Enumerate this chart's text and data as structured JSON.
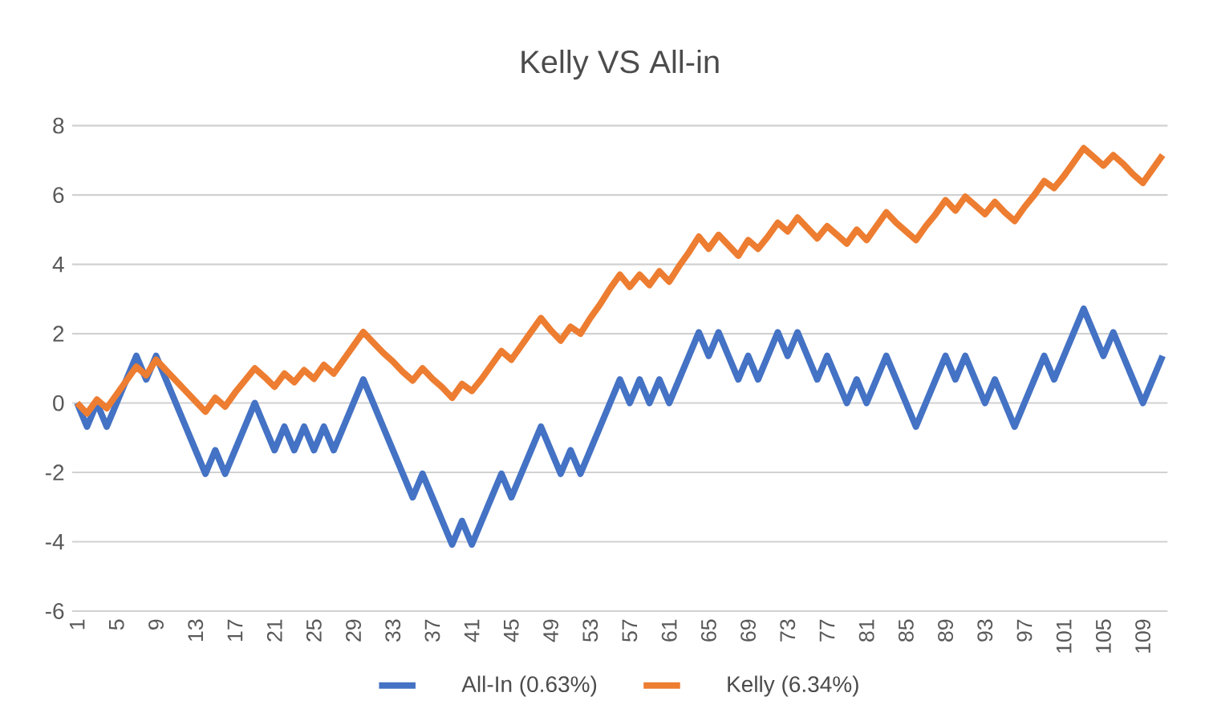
{
  "chart_data": {
    "type": "line",
    "title": "Kelly VS All-in",
    "categories": [
      "1",
      null,
      null,
      null,
      "5",
      null,
      null,
      null,
      "9",
      null,
      null,
      null,
      "13",
      null,
      null,
      null,
      "17",
      null,
      null,
      null,
      "21",
      null,
      null,
      null,
      "25",
      null,
      null,
      null,
      "29",
      null,
      null,
      null,
      "33",
      null,
      null,
      null,
      "37",
      null,
      null,
      null,
      "41",
      null,
      null,
      null,
      "45",
      null,
      null,
      null,
      "49",
      null,
      null,
      null,
      "53",
      null,
      null,
      null,
      "57",
      null,
      null,
      null,
      "61",
      null,
      null,
      null,
      "65",
      null,
      null,
      null,
      "69",
      null,
      null,
      null,
      "73",
      null,
      null,
      null,
      "77",
      null,
      null,
      null,
      "81",
      null,
      null,
      null,
      "85",
      null,
      null,
      null,
      "89",
      null,
      null,
      null,
      "93",
      null,
      null,
      null,
      "97",
      null,
      null,
      null,
      "101",
      null,
      null,
      null,
      "105",
      null,
      null,
      null,
      "109",
      null,
      null
    ],
    "series": [
      {
        "name": "All-In (0.63%)",
        "color": "#4472c4",
        "values": [
          0,
          -0.68,
          0,
          -0.68,
          0,
          0.68,
          1.36,
          0.68,
          1.36,
          0.68,
          0,
          -0.68,
          -1.36,
          -2.04,
          -1.36,
          -2.04,
          -1.36,
          -0.68,
          0,
          -0.68,
          -1.36,
          -0.68,
          -1.36,
          -0.68,
          -1.36,
          -0.68,
          -1.36,
          -0.68,
          0,
          0.68,
          0,
          -0.68,
          -1.36,
          -2.04,
          -2.72,
          -2.04,
          -2.72,
          -3.4,
          -4.08,
          -3.4,
          -4.08,
          -3.4,
          -2.72,
          -2.04,
          -2.72,
          -2.04,
          -1.36,
          -0.68,
          -1.36,
          -2.04,
          -1.36,
          -2.04,
          -1.36,
          -0.68,
          0,
          0.68,
          0,
          0.68,
          0,
          0.68,
          0,
          0.68,
          1.36,
          2.04,
          1.36,
          2.04,
          1.36,
          0.68,
          1.36,
          0.68,
          1.36,
          2.04,
          1.36,
          2.04,
          1.36,
          0.68,
          1.36,
          0.68,
          0,
          0.68,
          0,
          0.68,
          1.36,
          0.68,
          0,
          -0.68,
          0,
          0.68,
          1.36,
          0.68,
          1.36,
          0.68,
          0,
          0.68,
          0,
          -0.68,
          0,
          0.68,
          1.36,
          0.68,
          1.36,
          2.04,
          2.72,
          2.04,
          1.36,
          2.04,
          1.36,
          0.68,
          0,
          0.68,
          1.36
        ]
      },
      {
        "name": "Kelly (6.34%)",
        "color": "#ed7d31",
        "values": [
          0,
          -0.3,
          0.1,
          -0.15,
          0.25,
          0.65,
          1.05,
          0.8,
          1.25,
          0.95,
          0.65,
          0.35,
          0.05,
          -0.25,
          0.15,
          -0.1,
          0.3,
          0.65,
          1.0,
          0.75,
          0.47,
          0.85,
          0.6,
          0.95,
          0.7,
          1.1,
          0.85,
          1.25,
          1.65,
          2.05,
          1.75,
          1.45,
          1.2,
          0.9,
          0.65,
          1.0,
          0.7,
          0.45,
          0.15,
          0.55,
          0.35,
          0.7,
          1.1,
          1.5,
          1.25,
          1.65,
          2.05,
          2.45,
          2.1,
          1.8,
          2.2,
          2.0,
          2.45,
          2.85,
          3.3,
          3.7,
          3.35,
          3.7,
          3.4,
          3.8,
          3.5,
          3.95,
          4.35,
          4.8,
          4.45,
          4.85,
          4.55,
          4.25,
          4.7,
          4.45,
          4.8,
          5.2,
          4.95,
          5.35,
          5.05,
          4.75,
          5.1,
          4.85,
          4.6,
          5.0,
          4.7,
          5.1,
          5.5,
          5.2,
          4.95,
          4.7,
          5.1,
          5.45,
          5.85,
          5.55,
          5.95,
          5.7,
          5.45,
          5.8,
          5.5,
          5.25,
          5.65,
          6.0,
          6.4,
          6.2,
          6.55,
          6.95,
          7.35,
          7.1,
          6.85,
          7.15,
          6.9,
          6.6,
          6.35,
          6.75,
          7.15
        ]
      }
    ],
    "ylim": [
      -6,
      8
    ],
    "yticks": [
      -6,
      -4,
      -2,
      0,
      2,
      4,
      6,
      8
    ],
    "grid": "y",
    "legend": "bottom",
    "marker": "none",
    "line_style": "solid"
  }
}
